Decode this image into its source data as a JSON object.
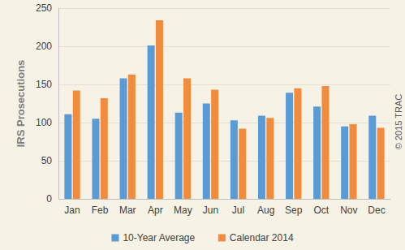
{
  "chart_data": {
    "type": "bar",
    "y_label": "IRS Prosecutions",
    "annotation": "© 2015 TRAC",
    "categories": [
      "Jan",
      "Feb",
      "Mar",
      "Apr",
      "May",
      "Jun",
      "Jul",
      "Aug",
      "Sep",
      "Oct",
      "Nov",
      "Dec"
    ],
    "series": [
      {
        "name": "10-Year Average",
        "color": "#5b9bd5",
        "values": [
          111,
          105,
          158,
          201,
          113,
          125,
          103,
          109,
          139,
          121,
          95,
          109
        ]
      },
      {
        "name": "Calendar 2014",
        "color": "#f28b3c",
        "values": [
          142,
          132,
          163,
          234,
          158,
          143,
          92,
          106,
          145,
          148,
          98,
          93
        ]
      }
    ],
    "ylim": [
      0,
      250
    ],
    "yticks": [
      0,
      50,
      100,
      150,
      200,
      250
    ],
    "grid": true,
    "legend": "bottom"
  }
}
